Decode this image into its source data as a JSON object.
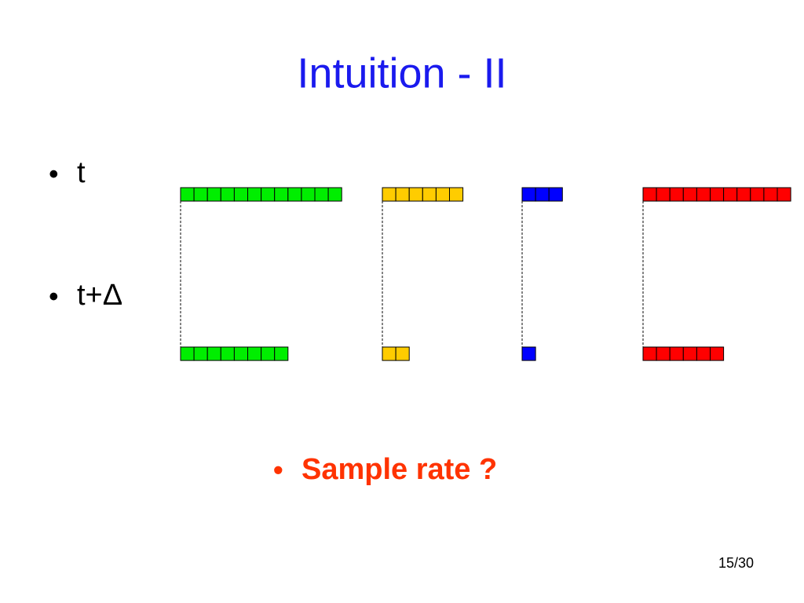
{
  "title": "Intuition - II",
  "bullets": [
    "t",
    "t+Δ"
  ],
  "highlight": {
    "bullet": "•",
    "text": "Sample rate ?"
  },
  "bullet_symbol": "•",
  "page_number": "15/30",
  "groups": [
    {
      "color": "#00ee00",
      "top": 12,
      "bottom": 8
    },
    {
      "color": "#ffcc00",
      "top": 6,
      "bottom": 2
    },
    {
      "color": "#0000ff",
      "top": 3,
      "bottom": 1
    },
    {
      "color": "#ff0000",
      "top": 11,
      "bottom": 6
    }
  ]
}
